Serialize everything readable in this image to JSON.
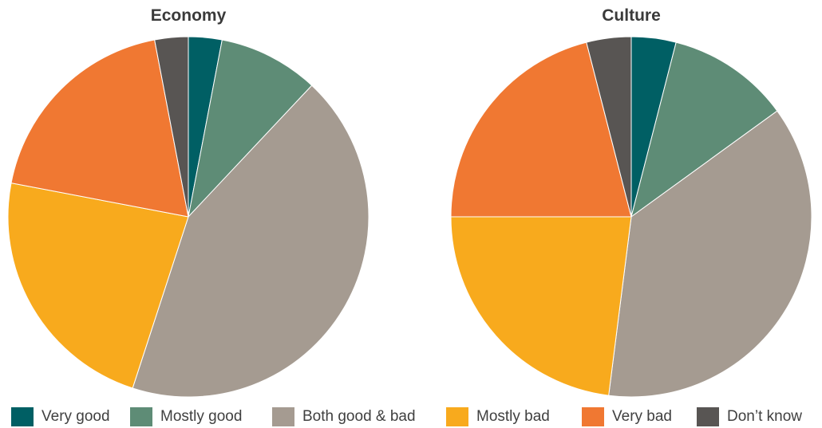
{
  "chart_data": [
    {
      "type": "pie",
      "title": "Economy",
      "categories": [
        "Very good",
        "Mostly good",
        "Both good & bad",
        "Mostly bad",
        "Very bad",
        "Don’t know"
      ],
      "values": [
        3,
        9,
        43,
        23,
        19,
        3
      ],
      "colors": [
        "#005f64",
        "#5e8c76",
        "#a59b91",
        "#f8aa1d",
        "#f07832",
        "#585553"
      ]
    },
    {
      "type": "pie",
      "title": "Culture",
      "categories": [
        "Very good",
        "Mostly good",
        "Both good & bad",
        "Mostly bad",
        "Very bad",
        "Don’t know"
      ],
      "values": [
        4,
        11,
        37,
        23,
        21,
        4
      ],
      "colors": [
        "#005f64",
        "#5e8c76",
        "#a59b91",
        "#f8aa1d",
        "#f07832",
        "#585553"
      ]
    }
  ],
  "legend": {
    "items": [
      {
        "label": "Very good",
        "color": "#005f64"
      },
      {
        "label": "Mostly good",
        "color": "#5e8c76"
      },
      {
        "label": "Both good & bad",
        "color": "#a59b91"
      },
      {
        "label": "Mostly bad",
        "color": "#f8aa1d"
      },
      {
        "label": "Very bad",
        "color": "#f07832"
      },
      {
        "label": "Don’t know",
        "color": "#585553"
      }
    ]
  }
}
